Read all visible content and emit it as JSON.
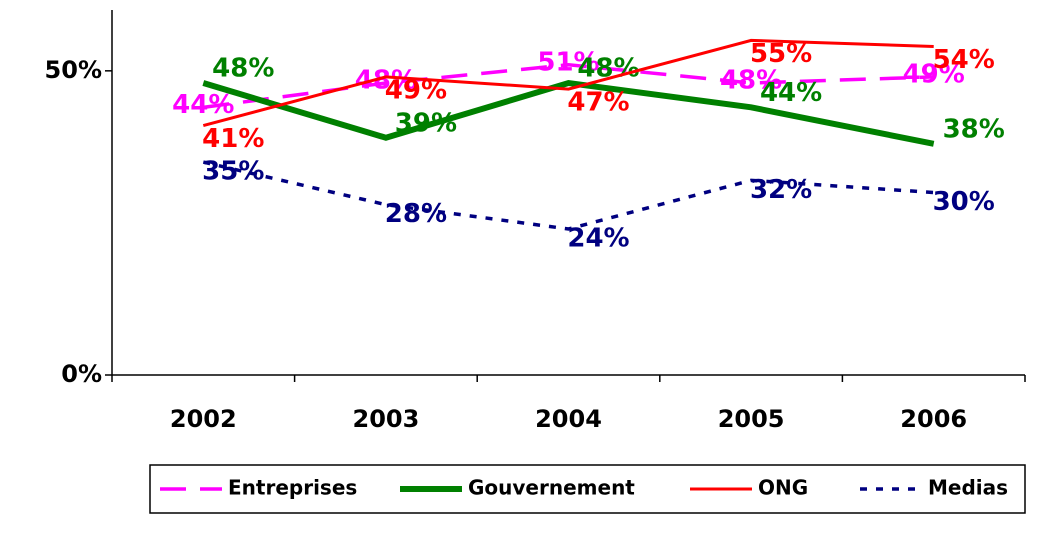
{
  "chart_data": {
    "type": "line",
    "categories": [
      "2002",
      "2003",
      "2004",
      "2005",
      "2006"
    ],
    "series": [
      {
        "name": "Entreprises",
        "color": "#ff00ff",
        "dash": "dashed",
        "values": [
          44,
          48,
          51,
          48,
          49
        ],
        "value_labels": [
          "44%",
          "48%",
          "51%",
          "48%",
          "49%"
        ]
      },
      {
        "name": "Gouvernement",
        "color": "#008000",
        "dash": "solid",
        "values": [
          48,
          39,
          48,
          44,
          38
        ],
        "value_labels": [
          "48%",
          "39%",
          "48%",
          "44%",
          "38%"
        ]
      },
      {
        "name": "ONG",
        "color": "#ff0000",
        "dash": "solid",
        "values": [
          41,
          49,
          47,
          55,
          54
        ],
        "value_labels": [
          "41%",
          "49%",
          "47%",
          "55%",
          "54%"
        ]
      },
      {
        "name": "Medias",
        "color": "#000080",
        "dash": "dotted",
        "values": [
          35,
          28,
          24,
          32,
          30
        ],
        "value_labels": [
          "35%",
          "28%",
          "24%",
          "32%",
          "30%"
        ]
      }
    ],
    "ylim": [
      0,
      60
    ],
    "yticks": [
      {
        "value": 0,
        "label": "0%"
      },
      {
        "value": 50,
        "label": "50%"
      }
    ],
    "legend": "bottom"
  }
}
